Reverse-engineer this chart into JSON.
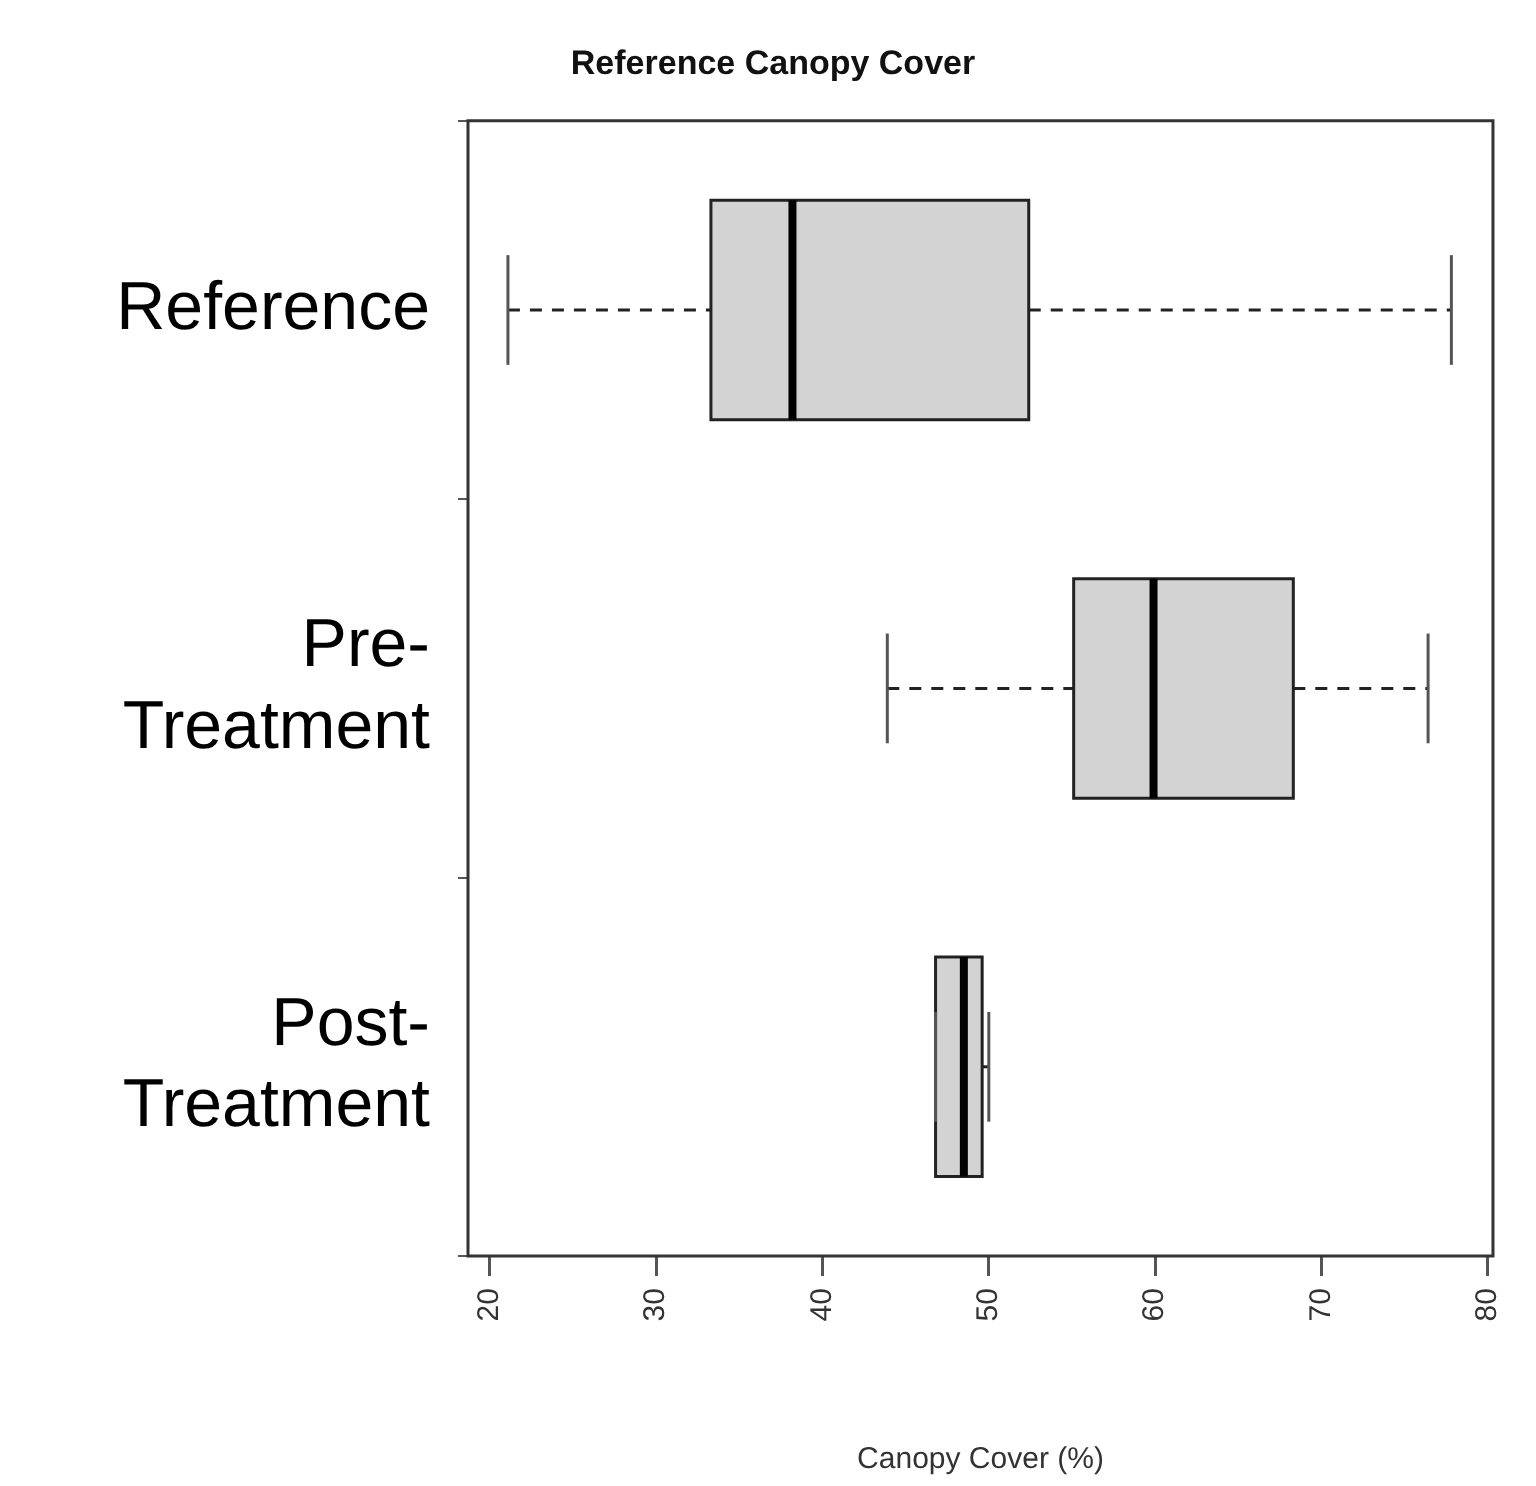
{
  "chart_data": {
    "type": "box",
    "title": "Reference Canopy Cover",
    "xlabel": "Canopy Cover (%)",
    "orientation": "horizontal",
    "categories": [
      "Reference",
      "Pre-Treatment",
      "Post-Treatment"
    ],
    "color": "#d3d3d3",
    "line_style": "dashed",
    "boxes": [
      {
        "low": 21.1,
        "q1": 33.3,
        "median": 38.2,
        "q3": 52.4,
        "high": 77.8
      },
      {
        "low": 43.9,
        "q1": 55.1,
        "median": 59.9,
        "q3": 68.3,
        "high": 76.4
      },
      {
        "low": 46.8,
        "q1": 46.8,
        "median": 48.5,
        "q3": 49.6,
        "high": 50.0
      }
    ],
    "xlim": [
      18.7,
      80.3
    ],
    "xticks": [
      20,
      30,
      40,
      50,
      60,
      70,
      80
    ]
  }
}
